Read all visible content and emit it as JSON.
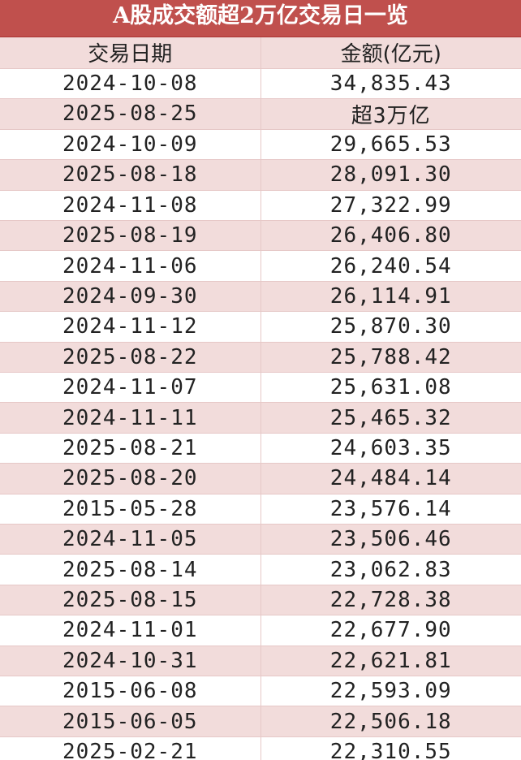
{
  "title": "A股成交额超2万亿交易日一览",
  "table": {
    "header": [
      "交易日期",
      "金额(亿元)"
    ],
    "rows": [
      [
        "2024-10-08",
        "34,835.43"
      ],
      [
        "2025-08-25",
        "超3万亿"
      ],
      [
        "2024-10-09",
        "29,665.53"
      ],
      [
        "2025-08-18",
        "28,091.30"
      ],
      [
        "2024-11-08",
        "27,322.99"
      ],
      [
        "2025-08-19",
        "26,406.80"
      ],
      [
        "2024-11-06",
        "26,240.54"
      ],
      [
        "2024-09-30",
        "26,114.91"
      ],
      [
        "2024-11-12",
        "25,870.30"
      ],
      [
        "2025-08-22",
        "25,788.42"
      ],
      [
        "2024-11-07",
        "25,631.08"
      ],
      [
        "2024-11-11",
        "25,465.32"
      ],
      [
        "2025-08-21",
        "24,603.35"
      ],
      [
        "2025-08-20",
        "24,484.14"
      ],
      [
        "2015-05-28",
        "23,576.14"
      ],
      [
        "2024-11-05",
        "23,506.46"
      ],
      [
        "2025-08-14",
        "23,062.83"
      ],
      [
        "2025-08-15",
        "22,728.38"
      ],
      [
        "2024-11-01",
        "22,677.90"
      ],
      [
        "2024-10-31",
        "22,621.81"
      ],
      [
        "2015-06-08",
        "22,593.09"
      ],
      [
        "2015-06-05",
        "22,506.18"
      ],
      [
        "2025-02-21",
        "22,310.55"
      ]
    ]
  }
}
